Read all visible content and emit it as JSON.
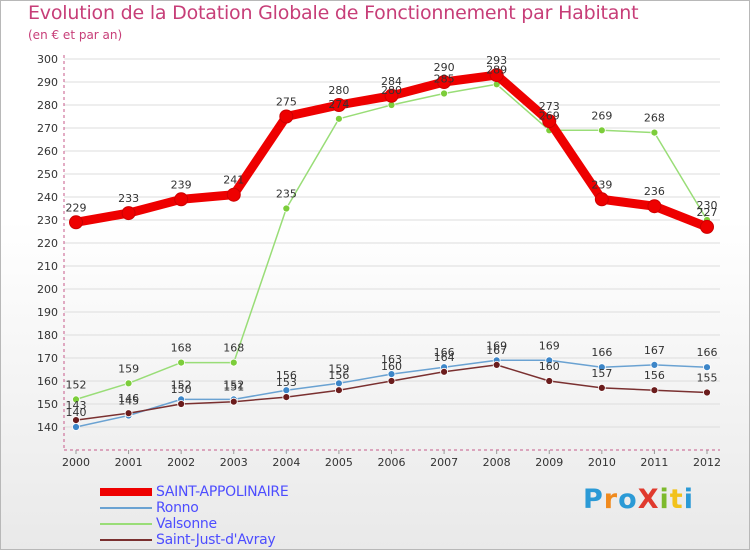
{
  "title": "Evolution de la Dotation Globale de Fonctionnement par Habitant",
  "subtitle": "(en € et par an)",
  "logo": {
    "text": "ProXiti",
    "colors": [
      "#2b9ad6",
      "#f08a1d",
      "#2b9ad6",
      "#e03a2e",
      "#7dba2c",
      "#f2c21b",
      "#2b9ad6"
    ]
  },
  "chart_data": {
    "type": "line",
    "title": "Evolution de la Dotation Globale de Fonctionnement par Habitant",
    "subtitle": "(en € et par an)",
    "xlabel": "",
    "ylabel": "",
    "categories": [
      "2000",
      "2001",
      "2002",
      "2003",
      "2004",
      "2005",
      "2006",
      "2007",
      "2008",
      "2009",
      "2010",
      "2011",
      "2012"
    ],
    "ylim": [
      130,
      300
    ],
    "yticks": [
      140,
      150,
      160,
      170,
      180,
      190,
      200,
      210,
      220,
      230,
      240,
      250,
      260,
      270,
      280,
      290,
      300
    ],
    "grid": "horizontal",
    "legend_position": "bottom-left",
    "series": [
      {
        "name": "SAINT-APPOLINAIRE",
        "color": "#ee0000",
        "marker_color": "#ee0000",
        "legend_text_color": "#4d4dff",
        "values": [
          229,
          233,
          239,
          241,
          275,
          280,
          284,
          290,
          293,
          273,
          239,
          236,
          227
        ]
      },
      {
        "name": "Ronno",
        "color": "#6aa2d2",
        "marker_color": "#3d86c8",
        "legend_text_color": "#4d4dff",
        "values": [
          140,
          145,
          152,
          152,
          156,
          159,
          163,
          166,
          169,
          169,
          166,
          167,
          166
        ]
      },
      {
        "name": "Valsonne",
        "color": "#99dd77",
        "marker_color": "#7ccd3a",
        "legend_text_color": "#4d4dff",
        "values": [
          152,
          159,
          168,
          168,
          235,
          274,
          280,
          285,
          289,
          269,
          269,
          268,
          230
        ]
      },
      {
        "name": "Saint-Just-d'Avray",
        "color": "#7a3030",
        "marker_color": "#6b1c1c",
        "legend_text_color": "#4d4dff",
        "values": [
          143,
          146,
          150,
          151,
          153,
          156,
          160,
          164,
          167,
          160,
          157,
          156,
          155
        ]
      }
    ],
    "point_labels": {
      "SAINT-APPOLINAIRE": [
        "229",
        "233",
        "239",
        "241",
        "275",
        "280",
        "284",
        "290",
        "293",
        "273",
        "239",
        "236",
        "227"
      ],
      "Ronno": [
        "140",
        "145",
        "152",
        "152",
        "156",
        "159",
        "163",
        "166",
        "169",
        "169",
        "166",
        "167",
        "166"
      ],
      "Valsonne": [
        "152",
        "159",
        "168",
        "168",
        "235",
        "274",
        "280",
        "285",
        "289",
        "269",
        "269",
        "268",
        "230"
      ],
      "Saint-Just-d'Avray": [
        "143",
        "146",
        "150",
        "151",
        "153",
        "156",
        "160",
        "164",
        "167",
        "160",
        "157",
        "156",
        "155"
      ]
    }
  }
}
